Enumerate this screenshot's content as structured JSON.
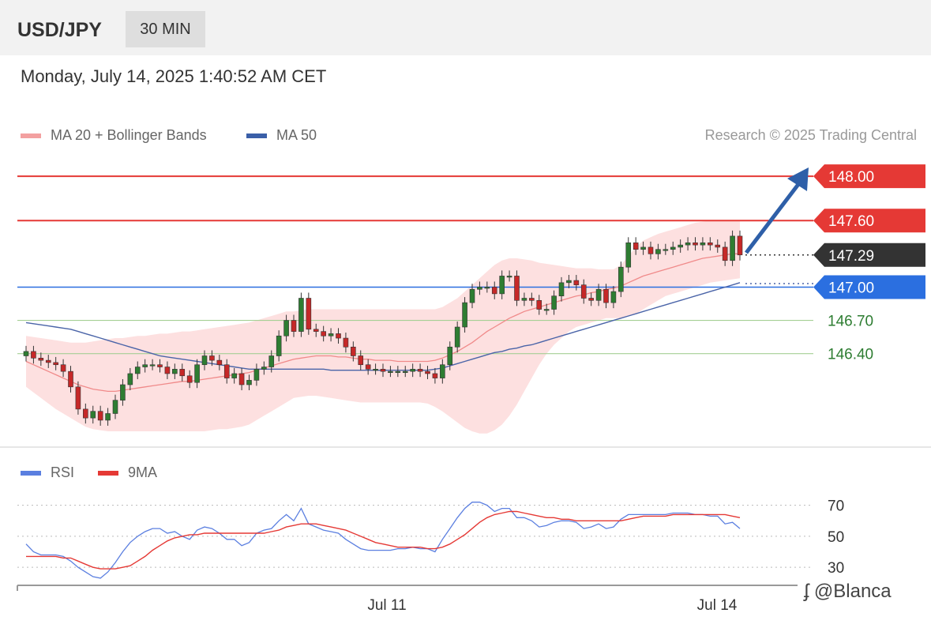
{
  "header": {
    "pair": "USD/JPY",
    "timeframe": "30 MIN"
  },
  "datetime": "Monday, July 14, 2025 1:40:52 AM CET",
  "credit": "Research © 2025 Trading Central",
  "watermark": "@Blanca",
  "colors": {
    "resistance": "#e53935",
    "current": "#333333",
    "support": "#2b6fe0",
    "target": "#2e7d32",
    "arrow": "#2e5fa8",
    "ma20": "#f08a8a",
    "ma50": "#4a64a8",
    "band": "#fde0e0",
    "rsi": "#5b7fe0",
    "rsi_ma": "#e53935"
  },
  "chart_data": [
    {
      "type": "candlestick",
      "legend": [
        {
          "name": "MA 20 + Bollinger Bands",
          "color": "#f3a0a0"
        },
        {
          "name": "MA 50",
          "color": "#3a5fa8"
        }
      ],
      "ylim": [
        145.6,
        148.2
      ],
      "xlabels": [
        "Jul 11",
        "Jul 14"
      ],
      "levels": [
        {
          "value": 148.0,
          "label": "148.00",
          "style": "resistance"
        },
        {
          "value": 147.6,
          "label": "147.60",
          "style": "resistance"
        },
        {
          "value": 147.29,
          "label": "147.29",
          "style": "current"
        },
        {
          "value": 147.0,
          "label": "147.00",
          "style": "support"
        },
        {
          "value": 146.7,
          "label": "146.70",
          "style": "target"
        },
        {
          "value": 146.4,
          "label": "146.40",
          "style": "target"
        }
      ],
      "close": [
        146.42,
        146.36,
        146.34,
        146.32,
        146.3,
        146.24,
        146.1,
        145.9,
        145.82,
        145.88,
        145.8,
        145.86,
        145.98,
        146.12,
        146.22,
        146.28,
        146.3,
        146.3,
        146.28,
        146.22,
        146.26,
        146.2,
        146.14,
        146.3,
        146.38,
        146.34,
        146.3,
        146.18,
        146.22,
        146.12,
        146.16,
        146.26,
        146.28,
        146.38,
        146.56,
        146.7,
        146.6,
        146.9,
        146.62,
        146.6,
        146.56,
        146.58,
        146.54,
        146.46,
        146.38,
        146.3,
        146.26,
        146.26,
        146.24,
        146.24,
        146.24,
        146.24,
        146.26,
        146.24,
        146.22,
        146.18,
        146.3,
        146.46,
        146.64,
        146.86,
        146.98,
        147.0,
        147.0,
        146.94,
        147.1,
        147.1,
        146.88,
        146.9,
        146.88,
        146.8,
        146.8,
        146.92,
        147.04,
        147.06,
        147.02,
        146.9,
        146.88,
        146.98,
        146.86,
        146.96,
        147.18,
        147.4,
        147.34,
        147.36,
        147.3,
        147.34,
        147.34,
        147.36,
        147.38,
        147.4,
        147.38,
        147.4,
        147.38,
        147.36,
        147.24,
        147.46,
        147.29
      ],
      "ma20": [
        146.33,
        146.3,
        146.27,
        146.24,
        146.21,
        146.18,
        146.15,
        146.12,
        146.1,
        146.08,
        146.07,
        146.06,
        146.06,
        146.07,
        146.08,
        146.09,
        146.1,
        146.11,
        146.12,
        146.13,
        146.14,
        146.15,
        146.15,
        146.16,
        146.17,
        146.18,
        146.19,
        146.2,
        146.21,
        146.22,
        146.23,
        146.25,
        146.27,
        146.29,
        146.31,
        146.33,
        146.35,
        146.36,
        146.37,
        146.38,
        146.38,
        146.38,
        146.37,
        146.37,
        146.36,
        146.35,
        146.35,
        146.34,
        146.34,
        146.34,
        146.33,
        146.33,
        146.33,
        146.33,
        146.33,
        146.34,
        146.36,
        146.39,
        146.42,
        146.46,
        146.5,
        146.55,
        146.6,
        146.64,
        146.68,
        146.72,
        146.75,
        146.78,
        146.8,
        146.82,
        146.84,
        146.86,
        146.88,
        146.9,
        146.92,
        146.93,
        146.95,
        146.96,
        146.98,
        146.99,
        147.01,
        147.04,
        147.07,
        147.1,
        147.12,
        147.14,
        147.16,
        147.18,
        147.2,
        147.22,
        147.24,
        147.26,
        147.27,
        147.28,
        147.29,
        147.3,
        147.3
      ],
      "bb_upper": [
        146.56,
        146.55,
        146.54,
        146.53,
        146.52,
        146.51,
        146.5,
        146.5,
        146.5,
        146.51,
        146.52,
        146.53,
        146.54,
        146.54,
        146.55,
        146.56,
        146.56,
        146.57,
        146.58,
        146.58,
        146.59,
        146.6,
        146.6,
        146.61,
        146.62,
        146.63,
        146.64,
        146.65,
        146.66,
        146.67,
        146.68,
        146.7,
        146.72,
        146.74,
        146.76,
        146.78,
        146.78,
        146.79,
        146.8,
        146.8,
        146.8,
        146.8,
        146.8,
        146.8,
        146.8,
        146.8,
        146.8,
        146.8,
        146.8,
        146.8,
        146.8,
        146.8,
        146.8,
        146.8,
        146.8,
        146.8,
        146.82,
        146.86,
        146.9,
        146.96,
        147.02,
        147.08,
        147.14,
        147.2,
        147.24,
        147.26,
        147.26,
        147.25,
        147.24,
        147.22,
        147.21,
        147.2,
        147.19,
        147.18,
        147.17,
        147.17,
        147.17,
        147.16,
        147.16,
        147.16,
        147.2,
        147.28,
        147.36,
        147.42,
        147.45,
        147.48,
        147.5,
        147.52,
        147.54,
        147.56,
        147.58,
        147.59,
        147.6,
        147.6,
        147.6,
        147.6,
        147.6
      ],
      "bb_lower": [
        146.1,
        146.05,
        146.0,
        145.95,
        145.9,
        145.86,
        145.82,
        145.78,
        145.74,
        145.72,
        145.71,
        145.7,
        145.7,
        145.7,
        145.7,
        145.7,
        145.7,
        145.7,
        145.7,
        145.7,
        145.7,
        145.7,
        145.7,
        145.7,
        145.7,
        145.71,
        145.72,
        145.72,
        145.73,
        145.74,
        145.76,
        145.8,
        145.84,
        145.88,
        145.92,
        145.96,
        146.0,
        146.01,
        146.02,
        146.02,
        146.01,
        146.0,
        145.99,
        145.98,
        145.97,
        145.96,
        145.96,
        145.96,
        145.96,
        145.96,
        145.96,
        145.96,
        145.96,
        145.96,
        145.95,
        145.92,
        145.88,
        145.83,
        145.78,
        145.73,
        145.7,
        145.68,
        145.68,
        145.71,
        145.76,
        145.84,
        145.94,
        146.06,
        146.18,
        146.3,
        146.4,
        146.48,
        146.54,
        146.6,
        146.64,
        146.66,
        146.68,
        146.7,
        146.72,
        146.72,
        146.72,
        146.74,
        146.76,
        146.8,
        146.84,
        146.88,
        146.92,
        146.94,
        146.96,
        146.98,
        147.0,
        147.02,
        147.04,
        147.05,
        147.06,
        147.07,
        147.08
      ],
      "ma50": [
        146.68,
        146.67,
        146.66,
        146.65,
        146.64,
        146.63,
        146.62,
        146.6,
        146.58,
        146.56,
        146.54,
        146.52,
        146.5,
        146.48,
        146.46,
        146.44,
        146.42,
        146.4,
        146.38,
        146.37,
        146.36,
        146.35,
        146.34,
        146.33,
        146.32,
        146.31,
        146.3,
        146.29,
        146.28,
        146.27,
        146.26,
        146.26,
        146.26,
        146.26,
        146.26,
        146.26,
        146.26,
        146.26,
        146.26,
        146.26,
        146.26,
        146.25,
        146.25,
        146.25,
        146.25,
        146.25,
        146.25,
        146.25,
        146.25,
        146.25,
        146.25,
        146.25,
        146.25,
        146.25,
        146.25,
        146.26,
        146.27,
        146.29,
        146.31,
        146.33,
        146.35,
        146.37,
        146.39,
        146.41,
        146.42,
        146.44,
        146.45,
        146.47,
        146.48,
        146.5,
        146.52,
        146.54,
        146.56,
        146.58,
        146.6,
        146.62,
        146.64,
        146.66,
        146.68,
        146.7,
        146.72,
        146.74,
        146.76,
        146.78,
        146.8,
        146.82,
        146.84,
        146.86,
        146.88,
        146.9,
        146.92,
        146.94,
        146.96,
        146.98,
        147.0,
        147.02,
        147.04
      ]
    },
    {
      "type": "line",
      "legend": [
        {
          "name": "RSI",
          "color": "#5b7fe0"
        },
        {
          "name": "9MA",
          "color": "#e53935"
        }
      ],
      "ylim": [
        25,
        80
      ],
      "yticks": [
        70,
        50,
        30
      ],
      "rsi": [
        45,
        40,
        38,
        38,
        38,
        37,
        34,
        30,
        27,
        24,
        23,
        27,
        33,
        40,
        46,
        50,
        53,
        55,
        55,
        52,
        53,
        50,
        48,
        54,
        56,
        55,
        52,
        48,
        48,
        44,
        46,
        52,
        54,
        55,
        60,
        64,
        60,
        68,
        58,
        56,
        54,
        53,
        52,
        48,
        45,
        42,
        41,
        41,
        41,
        41,
        42,
        42,
        43,
        42,
        42,
        40,
        48,
        55,
        62,
        68,
        72,
        72,
        70,
        66,
        68,
        68,
        62,
        62,
        60,
        56,
        57,
        59,
        60,
        60,
        59,
        55,
        56,
        58,
        55,
        56,
        61,
        64,
        64,
        64,
        64,
        64,
        64,
        65,
        65,
        65,
        64,
        64,
        63,
        63,
        58,
        59,
        55
      ],
      "rsi_ma": [
        37,
        37,
        37,
        37,
        37,
        36,
        36,
        34,
        32,
        30,
        29,
        29,
        29,
        30,
        31,
        34,
        37,
        41,
        44,
        47,
        49,
        50,
        51,
        51,
        52,
        52,
        52,
        52,
        52,
        52,
        52,
        52,
        52,
        53,
        54,
        56,
        57,
        58,
        58,
        58,
        57,
        56,
        55,
        54,
        52,
        50,
        48,
        46,
        45,
        44,
        43,
        43,
        43,
        43,
        42,
        42,
        43,
        45,
        48,
        51,
        55,
        59,
        62,
        64,
        65,
        66,
        66,
        65,
        64,
        63,
        62,
        62,
        61,
        61,
        60,
        60,
        60,
        60,
        60,
        60,
        60,
        61,
        62,
        63,
        63,
        63,
        63,
        64,
        64,
        64,
        64,
        64,
        64,
        64,
        64,
        63,
        62
      ]
    }
  ]
}
